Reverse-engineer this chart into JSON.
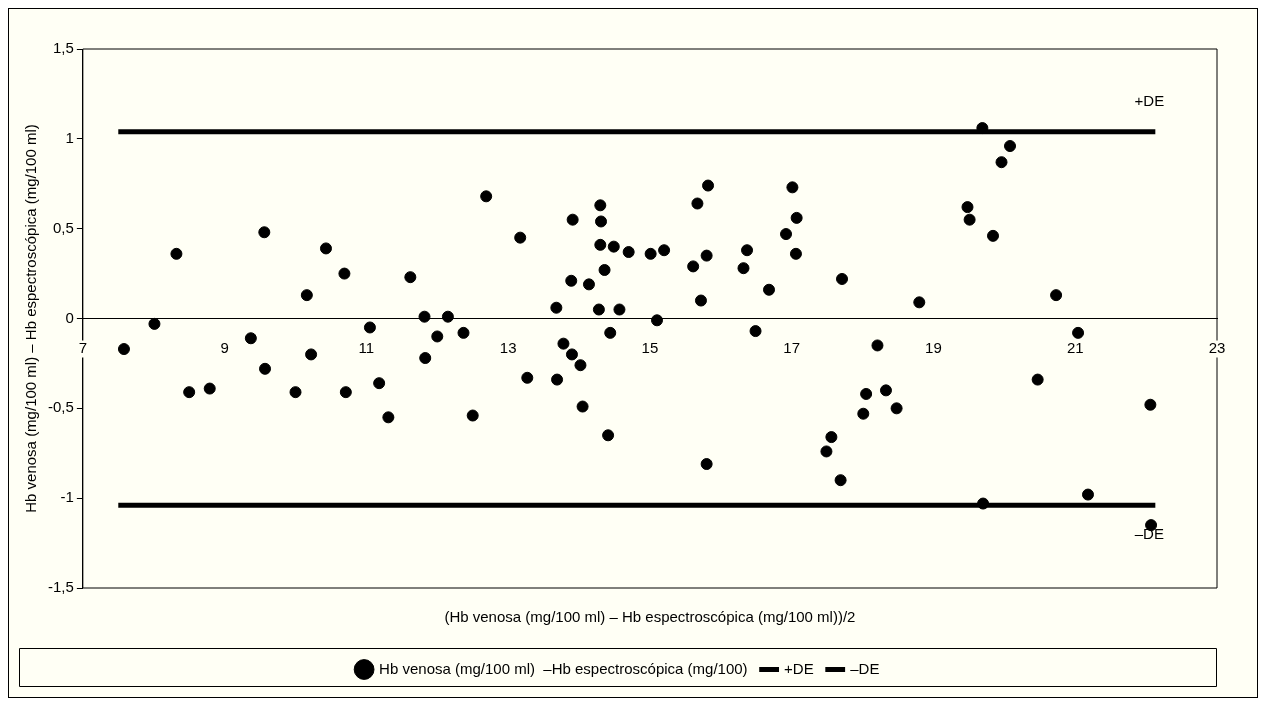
{
  "chart_data": {
    "type": "scatter",
    "xlabel": "(Hb venosa (mg/100 ml) – Hb espectroscópica (mg/100 ml))/2",
    "ylabel": "Hb venosa (mg/100 ml) – Hb espectroscópica (mg/100 ml)",
    "xlim": [
      7,
      23
    ],
    "xticks": [
      7,
      9,
      11,
      13,
      15,
      17,
      19,
      21,
      23
    ],
    "ylim": [
      -1.5,
      1.5
    ],
    "yticks": [
      {
        "value": -1.5,
        "label": "-1,5"
      },
      -1,
      {
        "value": -0.5,
        "label": "-0,5"
      },
      0,
      {
        "value": 0.5,
        "label": "0,5"
      },
      1,
      {
        "value": 1.5,
        "label": "1,5"
      }
    ],
    "grid": false,
    "legend": "bottom",
    "marker": "circle",
    "series": [
      {
        "name": "Hb venosa (mg/100 ml)  –Hb espectroscópica (mg/100)",
        "color": "#000000",
        "x": [
          7.58,
          8.01,
          8.32,
          8.5,
          8.79,
          9.37,
          9.56,
          9.57,
          10,
          10.16,
          10.22,
          10.43,
          10.69,
          10.71,
          11.05,
          11.18,
          11.31,
          11.62,
          11.82,
          11.83,
          12,
          12.15,
          12.37,
          12.5,
          12.69,
          13.17,
          13.27,
          13.68,
          13.69,
          13.78,
          13.89,
          13.91,
          13.9,
          14.02,
          14.05,
          14.14,
          14.28,
          14.3,
          14.31,
          14.3,
          14.36,
          14.41,
          14.44,
          14.49,
          14.57,
          14.7,
          15.01,
          15.1,
          15.2,
          15.61,
          15.67,
          15.72,
          15.8,
          15.82,
          15.8,
          16.32,
          16.37,
          16.49,
          16.68,
          16.92,
          17.01,
          17.07,
          17.06,
          17.49,
          17.56,
          17.69,
          17.71,
          18.01,
          18.05,
          18.21,
          18.33,
          18.48,
          18.8,
          19.69,
          20.08,
          19.96,
          19.48,
          19.51,
          19.84,
          20.73,
          21.04,
          20.47,
          22.06,
          19.7,
          21.18,
          22.07
        ],
        "values": [
          -0.17,
          -0.03,
          0.36,
          -0.41,
          -0.39,
          -0.11,
          0.48,
          -0.28,
          -0.41,
          0.13,
          -0.2,
          0.39,
          0.25,
          -0.41,
          -0.05,
          -0.36,
          -0.55,
          0.23,
          0.01,
          -0.22,
          -0.1,
          0.01,
          -0.08,
          -0.54,
          0.68,
          0.45,
          -0.33,
          0.06,
          -0.34,
          -0.14,
          0.21,
          0.55,
          -0.2,
          -0.26,
          -0.49,
          0.19,
          0.05,
          0.63,
          0.54,
          0.41,
          0.27,
          -0.65,
          -0.08,
          0.4,
          0.05,
          0.37,
          0.36,
          -0.01,
          0.38,
          0.29,
          0.64,
          0.1,
          0.35,
          0.74,
          -0.81,
          0.28,
          0.38,
          -0.07,
          0.16,
          0.47,
          0.73,
          0.56,
          0.36,
          -0.74,
          -0.66,
          -0.9,
          0.22,
          -0.53,
          -0.42,
          -0.15,
          -0.4,
          -0.5,
          0.09,
          1.06,
          0.96,
          0.87,
          0.62,
          0.55,
          0.46,
          0.13,
          -0.08,
          -0.34,
          -0.48,
          -1.03,
          -0.98,
          -1.15
        ]
      },
      {
        "name": "+DE",
        "type": "line",
        "color": "#000000",
        "marker": "none",
        "x": [
          7.5,
          22.13
        ],
        "values": [
          1.04,
          1.04
        ]
      },
      {
        "name": "–DE",
        "type": "line",
        "color": "#000000",
        "marker": "none",
        "x": [
          7.5,
          22.13
        ],
        "values": [
          -1.04,
          -1.04
        ]
      }
    ]
  }
}
